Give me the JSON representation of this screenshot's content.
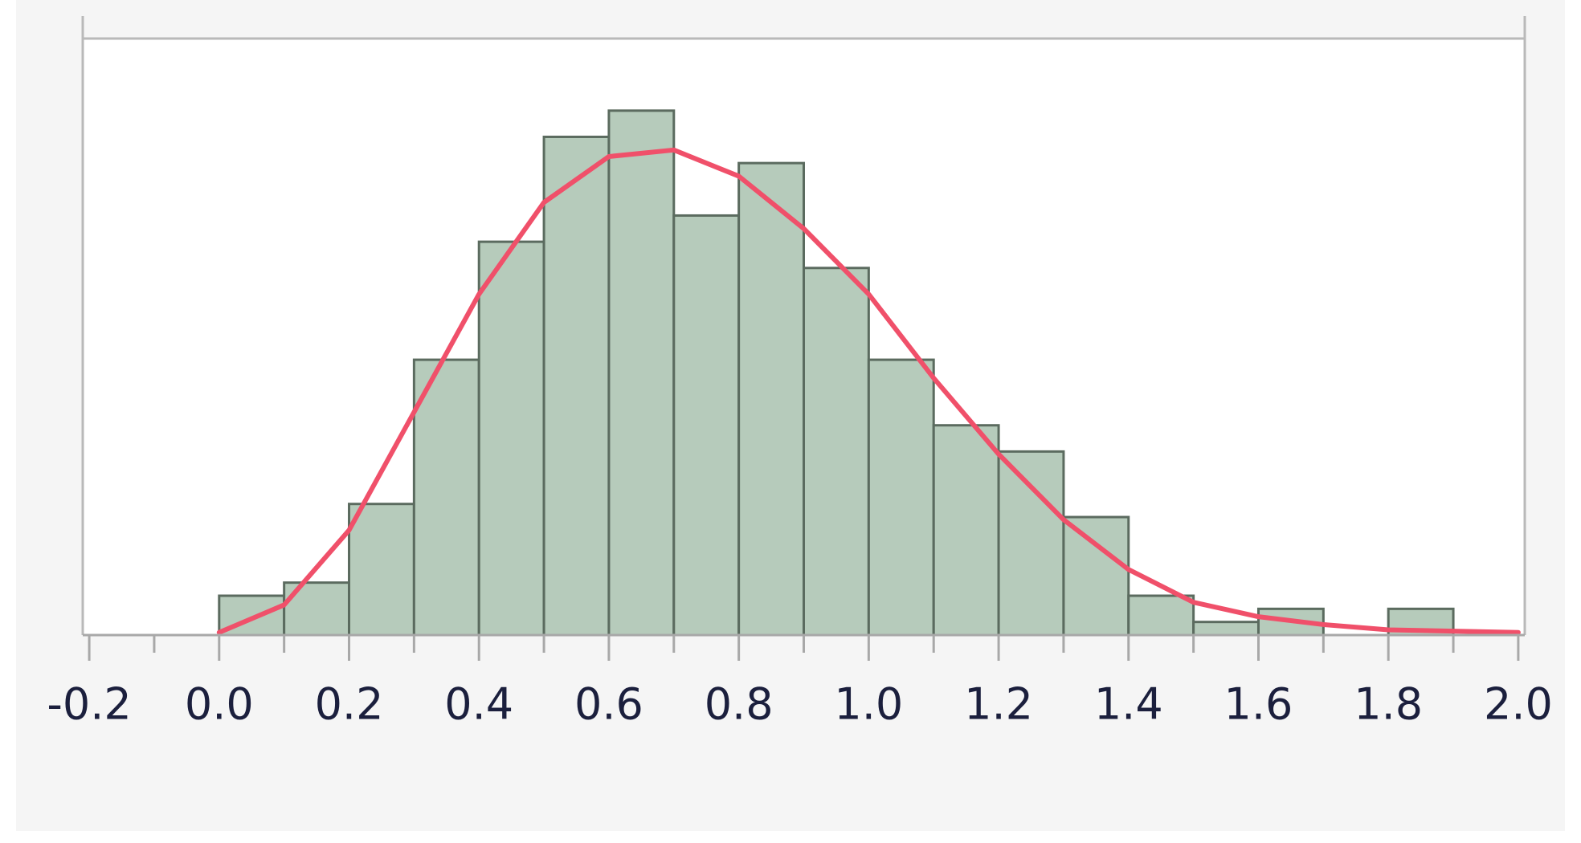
{
  "chart_data": {
    "type": "histogram",
    "bins": [
      0.0,
      0.1,
      0.2,
      0.3,
      0.4,
      0.5,
      0.6,
      0.7,
      0.8,
      0.9,
      1.0,
      1.1,
      1.2,
      1.3,
      1.4,
      1.5,
      1.6,
      1.7,
      1.8,
      1.9
    ],
    "values": [
      3,
      4,
      10,
      21,
      30,
      38,
      40,
      32,
      36,
      28,
      21,
      16,
      14,
      9,
      3,
      1,
      2,
      0,
      2
    ],
    "color": "#b6cbbb",
    "edge_color": "#5b6b5f",
    "fit": {
      "color": "#f0506a",
      "x": [
        0.0,
        0.1,
        0.2,
        0.3,
        0.4,
        0.5,
        0.6,
        0.7,
        0.8,
        0.9,
        1.0,
        1.1,
        1.2,
        1.3,
        1.4,
        1.5,
        1.6,
        1.7,
        1.8,
        2.0
      ],
      "values": [
        0.2,
        2.3,
        8,
        17,
        26,
        33,
        36.5,
        37,
        35,
        31,
        26,
        19.6,
        13.8,
        8.8,
        5,
        2.5,
        1.4,
        0.8,
        0.4,
        0.2
      ]
    },
    "xlim": [
      -0.21,
      2.01
    ],
    "ylim": [
      0,
      45.5
    ],
    "xticks": [
      -0.2,
      {
        "value": 0,
        "label": "0.0"
      },
      0.2,
      0.4,
      0.6,
      0.8,
      {
        "value": 1,
        "label": "1.0"
      },
      1.2,
      1.4,
      1.6,
      1.8,
      {
        "value": 2,
        "label": "2.0"
      }
    ],
    "x_minor_ticks": [
      -0.1,
      0.1,
      0.3,
      0.5,
      0.7,
      0.9,
      1.1,
      1.3,
      1.5,
      1.7,
      1.9
    ]
  }
}
